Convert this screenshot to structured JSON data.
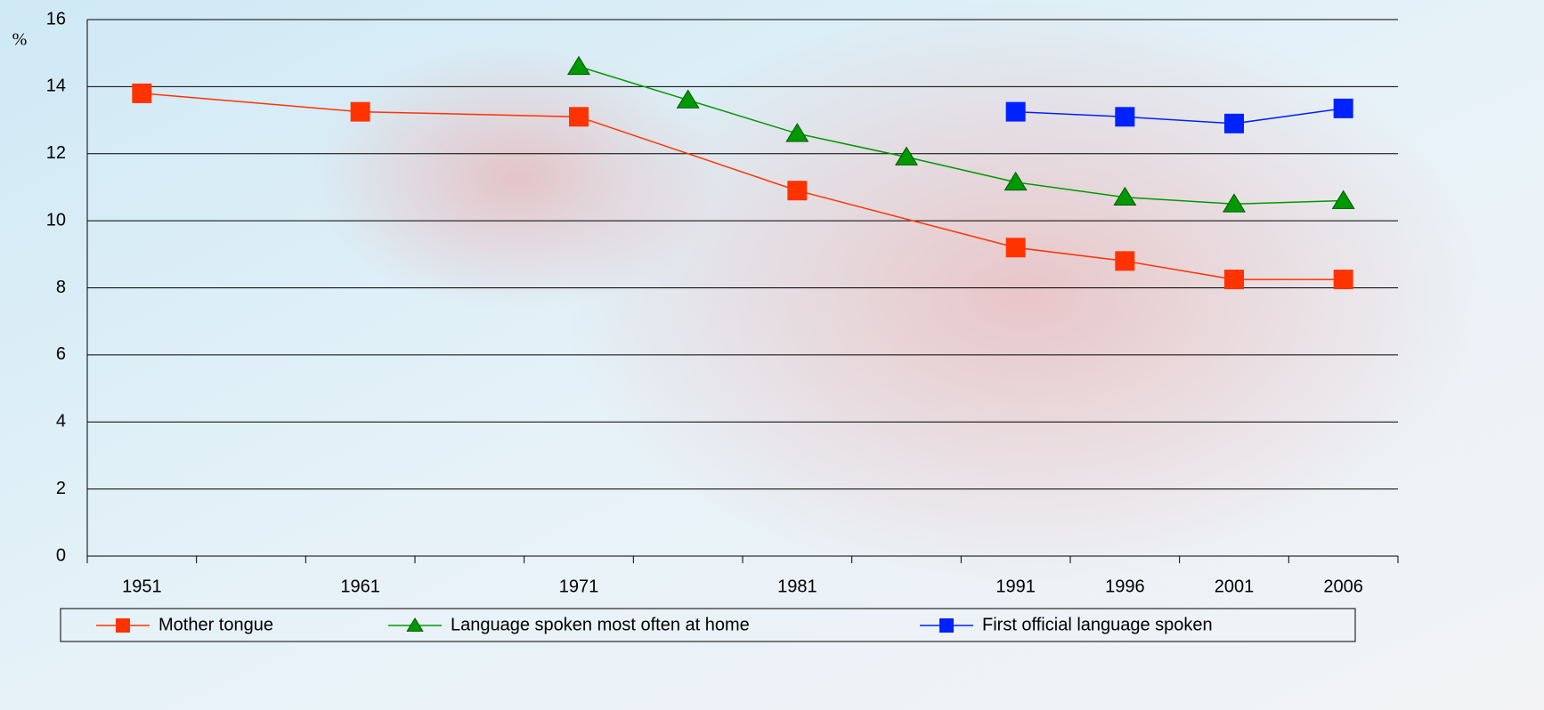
{
  "chart_data": {
    "type": "line",
    "ylabel": "%",
    "categories": [
      "1951",
      null,
      "1961",
      null,
      "1971",
      null,
      "1981",
      null,
      "1991",
      "1996",
      "2001",
      "2006"
    ],
    "series": [
      {
        "name": "Mother tongue",
        "color": "#ff3300",
        "marker": "square",
        "values": [
          13.8,
          null,
          13.25,
          null,
          13.1,
          null,
          10.9,
          null,
          9.2,
          8.8,
          8.25,
          8.25
        ]
      },
      {
        "name": "Language spoken most often at home",
        "color": "#009900",
        "marker": "triangle",
        "values": [
          null,
          null,
          null,
          null,
          14.6,
          13.6,
          12.6,
          11.9,
          11.15,
          10.7,
          10.5,
          10.6
        ]
      },
      {
        "name": "First official language spoken",
        "color": "#0022ff",
        "marker": "square",
        "values": [
          null,
          null,
          null,
          null,
          null,
          null,
          null,
          null,
          13.25,
          13.1,
          12.9,
          13.35
        ]
      }
    ],
    "ylim": [
      0,
      16
    ],
    "yticks": [
      0,
      2,
      4,
      6,
      8,
      10,
      12,
      14,
      16
    ],
    "grid": true,
    "legend": "bottom"
  }
}
